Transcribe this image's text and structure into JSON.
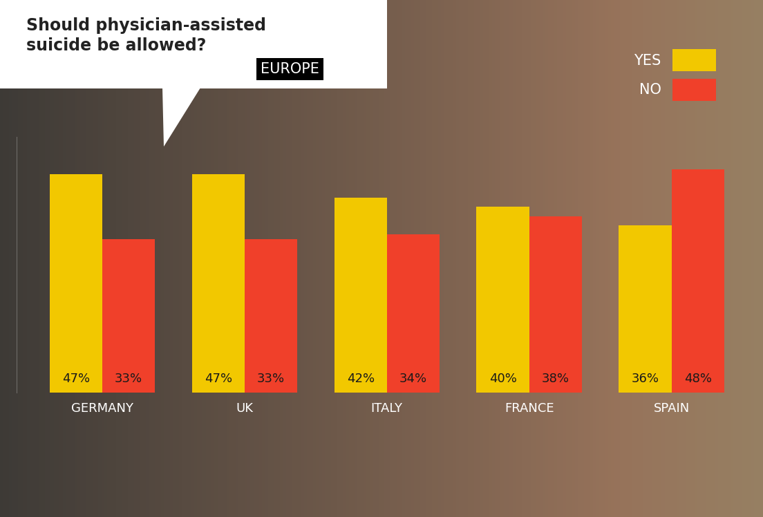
{
  "chart_data": {
    "type": "bar",
    "title": "Should physician-assisted\nsuicide be allowed?",
    "subtitle": "EUROPE",
    "categories": [
      "GERMANY",
      "UK",
      "ITALY",
      "FRANCE",
      "SPAIN"
    ],
    "series": [
      {
        "name": "YES",
        "color": "#f2c800",
        "values": [
          47,
          47,
          42,
          40,
          36
        ],
        "value_labels": [
          "47%",
          "47%",
          "42%",
          "40%",
          "36%"
        ]
      },
      {
        "name": "NO",
        "color": "#f0402a",
        "values": [
          33,
          33,
          34,
          38,
          48
        ],
        "value_labels": [
          "33%",
          "33%",
          "34%",
          "38%",
          "48%"
        ]
      }
    ],
    "ylim": [
      0,
      55
    ],
    "yticks": [],
    "grid": false,
    "legend": "upper right",
    "data_labels": true,
    "tick_labels": "x"
  }
}
